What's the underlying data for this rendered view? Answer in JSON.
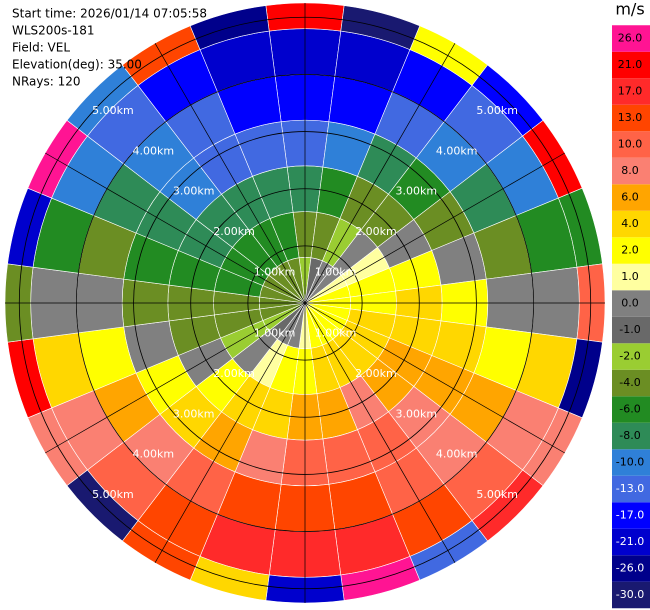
{
  "chart_data": {
    "type": "ppi",
    "header": [
      "Start time: 2026/01/14 07:05:58",
      "WLS200s-181",
      "Field: VEL",
      "Elevation(deg): 35.00",
      "NRays: 120"
    ],
    "colorbar_title": "m/s",
    "levels": [
      {
        "value": -30,
        "label": "-30.0"
      },
      {
        "value": -26,
        "label": "-26.0"
      },
      {
        "value": -21,
        "label": "-21.0"
      },
      {
        "value": -17,
        "label": "-17.0"
      },
      {
        "value": -13,
        "label": "-13.0"
      },
      {
        "value": -10,
        "label": "-10.0"
      },
      {
        "value": -8,
        "label": "-8.0"
      },
      {
        "value": -6,
        "label": "-6.0"
      },
      {
        "value": -4,
        "label": "-4.0"
      },
      {
        "value": -2,
        "label": "-2.0"
      },
      {
        "value": -1,
        "label": "-1.0"
      },
      {
        "value": 0,
        "label": "0.0"
      },
      {
        "value": 1,
        "label": "1.0"
      },
      {
        "value": 2,
        "label": "2.0"
      },
      {
        "value": 4,
        "label": "4.0"
      },
      {
        "value": 6,
        "label": "6.0"
      },
      {
        "value": 8,
        "label": "8.0"
      },
      {
        "value": 10,
        "label": "10.0"
      },
      {
        "value": 13,
        "label": "13.0"
      },
      {
        "value": 17,
        "label": "17.0"
      },
      {
        "value": 21,
        "label": "21.0"
      },
      {
        "value": 26,
        "label": "26.0"
      }
    ],
    "colors": [
      "#191970",
      "#00008b",
      "#0000cd",
      "#0000ff",
      "#4169e1",
      "#2f80d8",
      "#2e8b57",
      "#228b22",
      "#6b8e23",
      "#9acd32",
      "#696969",
      "#808080",
      "#ffffa0",
      "#ffff00",
      "#ffd700",
      "#ffa500",
      "#fa8072",
      "#ff6347",
      "#ff4500",
      "#ff2a2a",
      "#ff0000",
      "#ff1493"
    ],
    "range_rings": [
      {
        "value": 1,
        "label": "1.00km"
      },
      {
        "value": 2,
        "label": "2.00km"
      },
      {
        "value": 3,
        "label": "3.00km"
      },
      {
        "value": 4,
        "label": "4.00km"
      },
      {
        "value": 5,
        "label": "5.00km"
      }
    ],
    "rlim": [
      0,
      5.25
    ],
    "range_bins": [
      0,
      0.8,
      1.6,
      2.4,
      3.2,
      4.0,
      4.8,
      5.25
    ],
    "azimuths": [
      0,
      15,
      30,
      45,
      60,
      75,
      90,
      105,
      120,
      135,
      150,
      165,
      180,
      195,
      210,
      225,
      240,
      255,
      270,
      285,
      300,
      315,
      330,
      345
    ],
    "values": [
      [
        -1.5,
        -3.5,
        -6.9,
        -10.6,
        -14,
        -18,
        25
      ],
      [
        -0.8,
        -2.5,
        -5.7,
        -9.5,
        -13.5,
        -17.4,
        -28
      ],
      [
        0,
        -1.3,
        -4,
        -7.8,
        -12.1,
        -15.6,
        3
      ],
      [
        0.8,
        0,
        -2.1,
        -5.5,
        -9.9,
        -12.7,
        -15
      ],
      [
        1.5,
        1.3,
        0,
        -2.8,
        -7,
        -9,
        22
      ],
      [
        2.1,
        2.5,
        2.1,
        0,
        -3.6,
        -4.7,
        -5
      ],
      [
        2.6,
        3.5,
        4,
        2.8,
        0,
        0,
        12
      ],
      [
        2.9,
        4.3,
        5.7,
        5.5,
        3.6,
        4.7,
        -24
      ],
      [
        3,
        4.8,
        6.9,
        7.8,
        7,
        9,
        8
      ],
      [
        2.9,
        5,
        7.7,
        9.5,
        9.9,
        12.7,
        19
      ],
      [
        2.6,
        4.8,
        8,
        10.6,
        12.1,
        15.6,
        -11
      ],
      [
        2.1,
        4.3,
        7.7,
        11,
        13.5,
        17.4,
        27
      ],
      [
        1.5,
        3.5,
        6.9,
        10.6,
        14,
        18,
        -20
      ],
      [
        0.8,
        2.5,
        5.7,
        9.5,
        13.5,
        17.4,
        5
      ],
      [
        0,
        1.3,
        4,
        7.8,
        12.1,
        15.6,
        15
      ],
      [
        -0.8,
        0,
        2.1,
        5.5,
        9.9,
        12.7,
        -27
      ],
      [
        -1.5,
        -1.3,
        0,
        2.8,
        7,
        9,
        9
      ],
      [
        -2.1,
        -2.5,
        -2.1,
        0,
        3.6,
        4.7,
        23
      ],
      [
        -2.6,
        -3.5,
        -4,
        -2.8,
        0,
        0,
        -3
      ],
      [
        -2.9,
        -4.3,
        -5.7,
        -5.5,
        -3.6,
        -4.7,
        -18
      ],
      [
        -3,
        -4.8,
        -6.9,
        -7.8,
        -7,
        -9,
        28
      ],
      [
        -2.9,
        -5,
        -7.7,
        -9.5,
        -9.9,
        -12.7,
        -9
      ],
      [
        -2.6,
        -4.8,
        -8,
        -10.6,
        -12.1,
        -15.6,
        14
      ],
      [
        -2.1,
        -4.3,
        -7.7,
        -11,
        -13.5,
        -17.4,
        -22
      ]
    ]
  }
}
